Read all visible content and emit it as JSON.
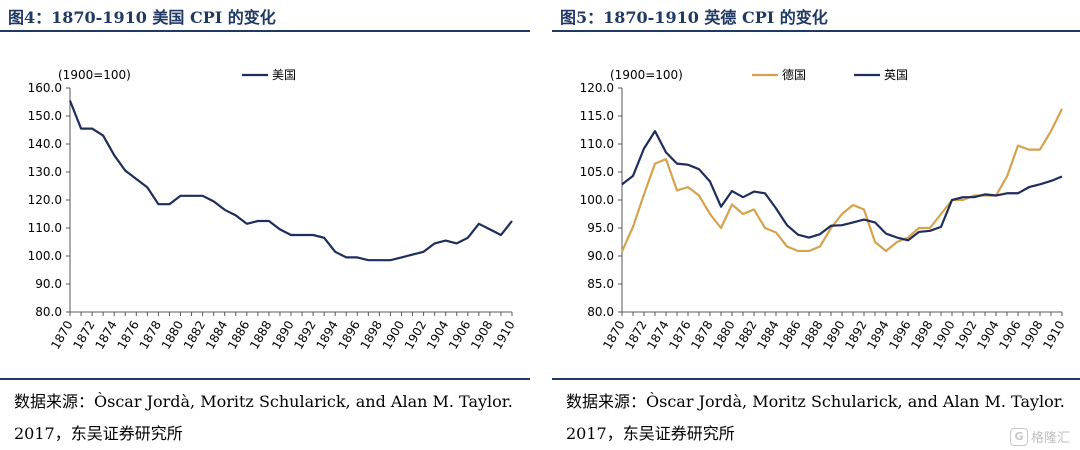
{
  "charts": [
    {
      "title": "图4：1870-1910 美国 CPI 的变化",
      "source_text": "数据来源：Òscar Jordà, Moritz Schularick, and Alan M. Taylor. 2017，东吴证券研究所"
    },
    {
      "title": "图5：1870-1910 英德 CPI 的变化",
      "source_text": "数据来源：Òscar Jordà, Moritz Schularick, and Alan M. Taylor. 2017，东吴证券研究所"
    }
  ],
  "watermark": {
    "icon": "G",
    "text": "格隆汇"
  },
  "chart_data": [
    {
      "type": "line",
      "title": "图4：1870-1910 美国 CPI 的变化",
      "unit_label": "(1900=100)",
      "xlabel": "",
      "ylabel": "",
      "ylim": [
        80,
        160
      ],
      "yticks": [
        "80.0",
        "90.0",
        "100.0",
        "110.0",
        "120.0",
        "130.0",
        "140.0",
        "150.0",
        "160.0"
      ],
      "x": [
        1870,
        1871,
        1872,
        1873,
        1874,
        1875,
        1876,
        1877,
        1878,
        1879,
        1880,
        1881,
        1882,
        1883,
        1884,
        1885,
        1886,
        1887,
        1888,
        1889,
        1890,
        1891,
        1892,
        1893,
        1894,
        1895,
        1896,
        1897,
        1898,
        1899,
        1900,
        1901,
        1902,
        1903,
        1904,
        1905,
        1906,
        1907,
        1908,
        1909,
        1910
      ],
      "xticks": [
        "1870",
        "1872",
        "1874",
        "1876",
        "1878",
        "1880",
        "1882",
        "1884",
        "1886",
        "1888",
        "1890",
        "1892",
        "1894",
        "1896",
        "1898",
        "1900",
        "1902",
        "1904",
        "1906",
        "1908",
        "1910"
      ],
      "legend_position": "top",
      "series": [
        {
          "name": "美国",
          "color": "#1f2d5c",
          "values": [
            155.5,
            145.5,
            145.5,
            143,
            136,
            130.5,
            127.5,
            124.5,
            118.5,
            118.5,
            121.5,
            121.5,
            121.5,
            119.5,
            116.5,
            114.5,
            111.5,
            112.5,
            112.5,
            109.5,
            107.5,
            107.5,
            107.5,
            106.5,
            101.5,
            99.5,
            99.5,
            98.5,
            98.5,
            98.5,
            99.5,
            100.5,
            101.5,
            104.5,
            105.5,
            104.5,
            106.5,
            111.5,
            109.5,
            107.5,
            112.5
          ]
        }
      ]
    },
    {
      "type": "line",
      "title": "图5：1870-1910 英德 CPI 的变化",
      "unit_label": "(1900=100)",
      "xlabel": "",
      "ylabel": "",
      "ylim": [
        80,
        120
      ],
      "yticks": [
        "80.0",
        "85.0",
        "90.0",
        "95.0",
        "100.0",
        "105.0",
        "110.0",
        "115.0",
        "120.0"
      ],
      "x": [
        1870,
        1871,
        1872,
        1873,
        1874,
        1875,
        1876,
        1877,
        1878,
        1879,
        1880,
        1881,
        1882,
        1883,
        1884,
        1885,
        1886,
        1887,
        1888,
        1889,
        1890,
        1891,
        1892,
        1893,
        1894,
        1895,
        1896,
        1897,
        1898,
        1899,
        1900,
        1901,
        1902,
        1903,
        1904,
        1905,
        1906,
        1907,
        1908,
        1909,
        1910
      ],
      "xticks": [
        "1870",
        "1872",
        "1874",
        "1876",
        "1878",
        "1880",
        "1882",
        "1884",
        "1886",
        "1888",
        "1890",
        "1892",
        "1894",
        "1896",
        "1898",
        "1900",
        "1902",
        "1904",
        "1906",
        "1908",
        "1910"
      ],
      "legend_position": "top",
      "series": [
        {
          "name": "德国",
          "color": "#d6a24d",
          "values": [
            90.8,
            95.2,
            101,
            106.5,
            107.3,
            101.7,
            102.3,
            100.8,
            97.5,
            95,
            99.2,
            97.5,
            98.3,
            95,
            94.2,
            91.7,
            90.9,
            90.9,
            91.7,
            95,
            97.5,
            99.1,
            98.3,
            92.5,
            90.9,
            92.5,
            93.3,
            95,
            95,
            97.5,
            100,
            100,
            100.8,
            100.8,
            100.8,
            104.2,
            109.7,
            109,
            109,
            112.3,
            116.3
          ]
        },
        {
          "name": "英国",
          "color": "#1f2d5c",
          "values": [
            102.8,
            104.3,
            109.2,
            112.3,
            108.5,
            106.5,
            106.3,
            105.5,
            103.3,
            98.8,
            101.6,
            100.5,
            101.5,
            101.2,
            98.5,
            95.5,
            93.8,
            93.3,
            93.9,
            95.4,
            95.5,
            96,
            96.5,
            96,
            94,
            93.3,
            92.8,
            94.3,
            94.5,
            95.2,
            100,
            100.5,
            100.5,
            101,
            100.8,
            101.2,
            101.2,
            102.3,
            102.8,
            103.4,
            104.2
          ]
        }
      ]
    }
  ]
}
